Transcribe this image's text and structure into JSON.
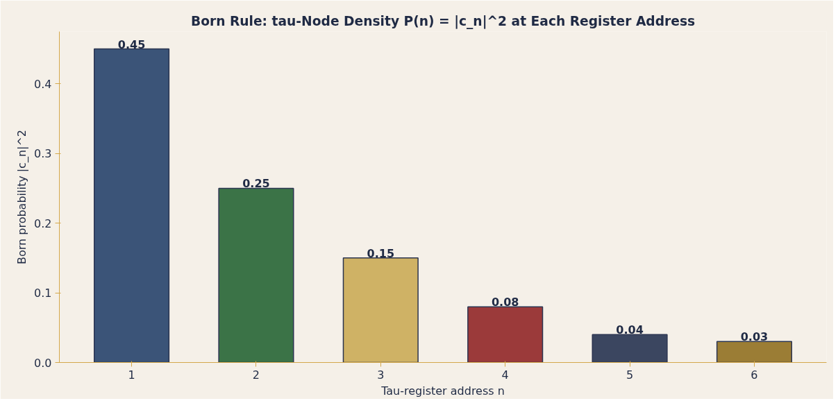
{
  "chart_data": {
    "type": "bar",
    "title": "Born Rule: tau-Node Density P(n) = |c_n|^2 at Each Register Address",
    "xlabel": "Tau-register address n",
    "ylabel": "Born probability |c_n|^2",
    "categories": [
      "1",
      "2",
      "3",
      "4",
      "5",
      "6"
    ],
    "values": [
      0.45,
      0.25,
      0.15,
      0.08,
      0.04,
      0.03
    ],
    "colors": [
      "#3b5478",
      "#3b7347",
      "#cfb265",
      "#9b3a3a",
      "#3b4660",
      "#9b7d35"
    ],
    "ylim": [
      0,
      0.475
    ],
    "yticks": [
      {
        "value": 0,
        "label": "0.0"
      },
      {
        "value": 0.1,
        "label": "0.1"
      },
      {
        "value": 0.2,
        "label": "0.2"
      },
      {
        "value": 0.3,
        "label": "0.3"
      },
      {
        "value": 0.4,
        "label": "0.4"
      }
    ],
    "grid": false,
    "data_labels": true
  }
}
